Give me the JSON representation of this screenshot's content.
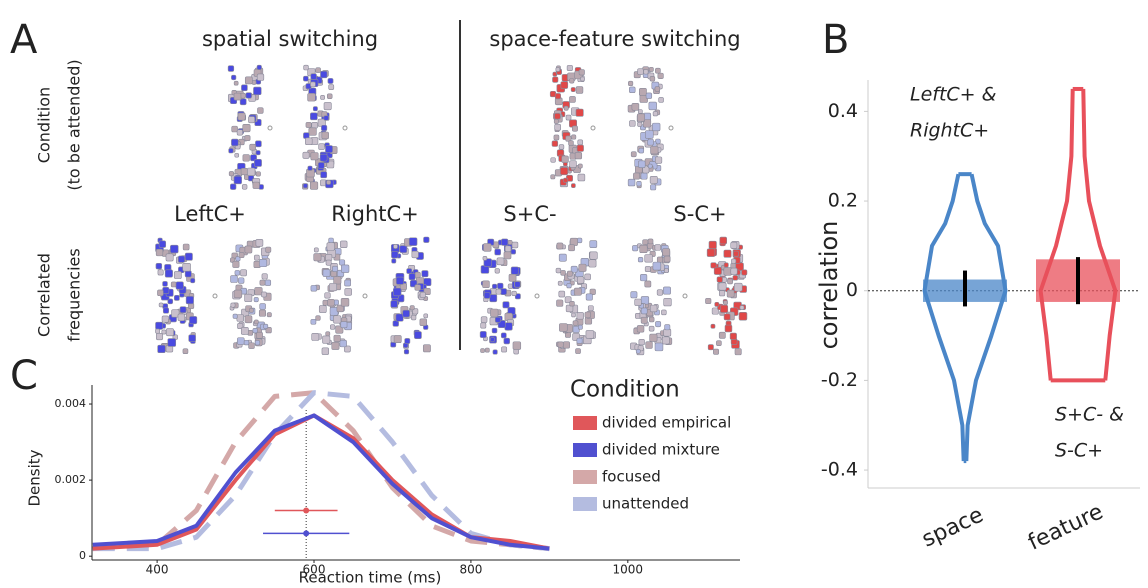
{
  "panel_a": {
    "label": "A",
    "groups": [
      {
        "title": "spatial switching",
        "conditions": [
          "LeftC+",
          "RightC+"
        ]
      },
      {
        "title": "space-feature switching",
        "conditions": [
          "S+C-",
          "S-C+"
        ]
      }
    ],
    "row_labels": [
      [
        "Condition",
        "(to be attended)"
      ],
      [
        "Correlated",
        "frequencies"
      ]
    ]
  },
  "chart_data": [
    {
      "type": "violin",
      "panel_label": "B",
      "y_label": "correlation",
      "categories": [
        "space",
        "feature"
      ],
      "colors": [
        "#4a86c8",
        "#e8505b"
      ],
      "annotations": [
        [
          "LeftC+ &",
          "RightC+"
        ],
        [
          "S+C- &",
          "S-C+"
        ]
      ],
      "ylim": [
        -0.44,
        0.47
      ],
      "yticks": [
        -0.4,
        -0.2,
        0,
        0.2,
        0.4
      ],
      "reference_y": 0,
      "violins": [
        {
          "y": [
            -0.38,
            -0.3,
            -0.2,
            -0.1,
            0,
            0.1,
            0.15,
            0.2,
            0.26
          ],
          "width": [
            0.03,
            0.06,
            0.25,
            0.6,
            0.92,
            0.75,
            0.45,
            0.28,
            0.15
          ],
          "band": [
            -0.025,
            0.025
          ],
          "interval": [
            -0.035,
            0.045
          ]
        },
        {
          "y": [
            -0.2,
            -0.1,
            0,
            0.1,
            0.2,
            0.3,
            0.45
          ],
          "width": [
            0.62,
            0.72,
            0.85,
            0.5,
            0.25,
            0.15,
            0.12
          ],
          "band": [
            -0.025,
            0.07
          ],
          "interval": [
            -0.03,
            0.075
          ]
        }
      ]
    },
    {
      "type": "line",
      "panel_label": "C",
      "x_label": "Reaction time (ms)",
      "y_label": "Density",
      "legend_title": "Condition",
      "x": [
        318,
        400,
        450,
        500,
        550,
        600,
        650,
        700,
        750,
        800,
        850,
        900
      ],
      "xlim": [
        317,
        1143
      ],
      "xticks": [
        400,
        600,
        800,
        1000
      ],
      "ylim": [
        -0.0001,
        0.0045
      ],
      "yticks": [
        0,
        0.002,
        0.004
      ],
      "reference_x": 590,
      "series": [
        {
          "name": "divided empirical",
          "color": "#e0575a",
          "dash": false,
          "values": [
            0.0002,
            0.0003,
            0.0007,
            0.002,
            0.0032,
            0.0037,
            0.0031,
            0.002,
            0.0011,
            0.0005,
            0.0004,
            0.0002
          ]
        },
        {
          "name": "divided mixture",
          "color": "#5050d0",
          "dash": false,
          "values": [
            0.0003,
            0.0004,
            0.0008,
            0.0022,
            0.0033,
            0.0037,
            0.003,
            0.0019,
            0.001,
            0.0005,
            0.0003,
            0.0002
          ]
        },
        {
          "name": "focused",
          "color": "#d4a8a8",
          "dash": true,
          "values": [
            0.0002,
            0.0003,
            0.0012,
            0.003,
            0.0042,
            0.0043,
            0.0033,
            0.0018,
            0.0008,
            0.0004,
            0.0003,
            0.0002
          ]
        },
        {
          "name": "unattended",
          "color": "#b4bce0",
          "dash": true,
          "values": [
            0.0002,
            0.0002,
            0.0005,
            0.0016,
            0.0032,
            0.0043,
            0.0042,
            0.003,
            0.0016,
            0.0006,
            0.0003,
            0.0002
          ]
        }
      ],
      "points": [
        {
          "x": 590,
          "y": 0.0012,
          "xerr": 40,
          "color": "#e0575a"
        },
        {
          "x": 590,
          "y": 0.0006,
          "xerr": 55,
          "color": "#5050d0"
        }
      ]
    }
  ]
}
